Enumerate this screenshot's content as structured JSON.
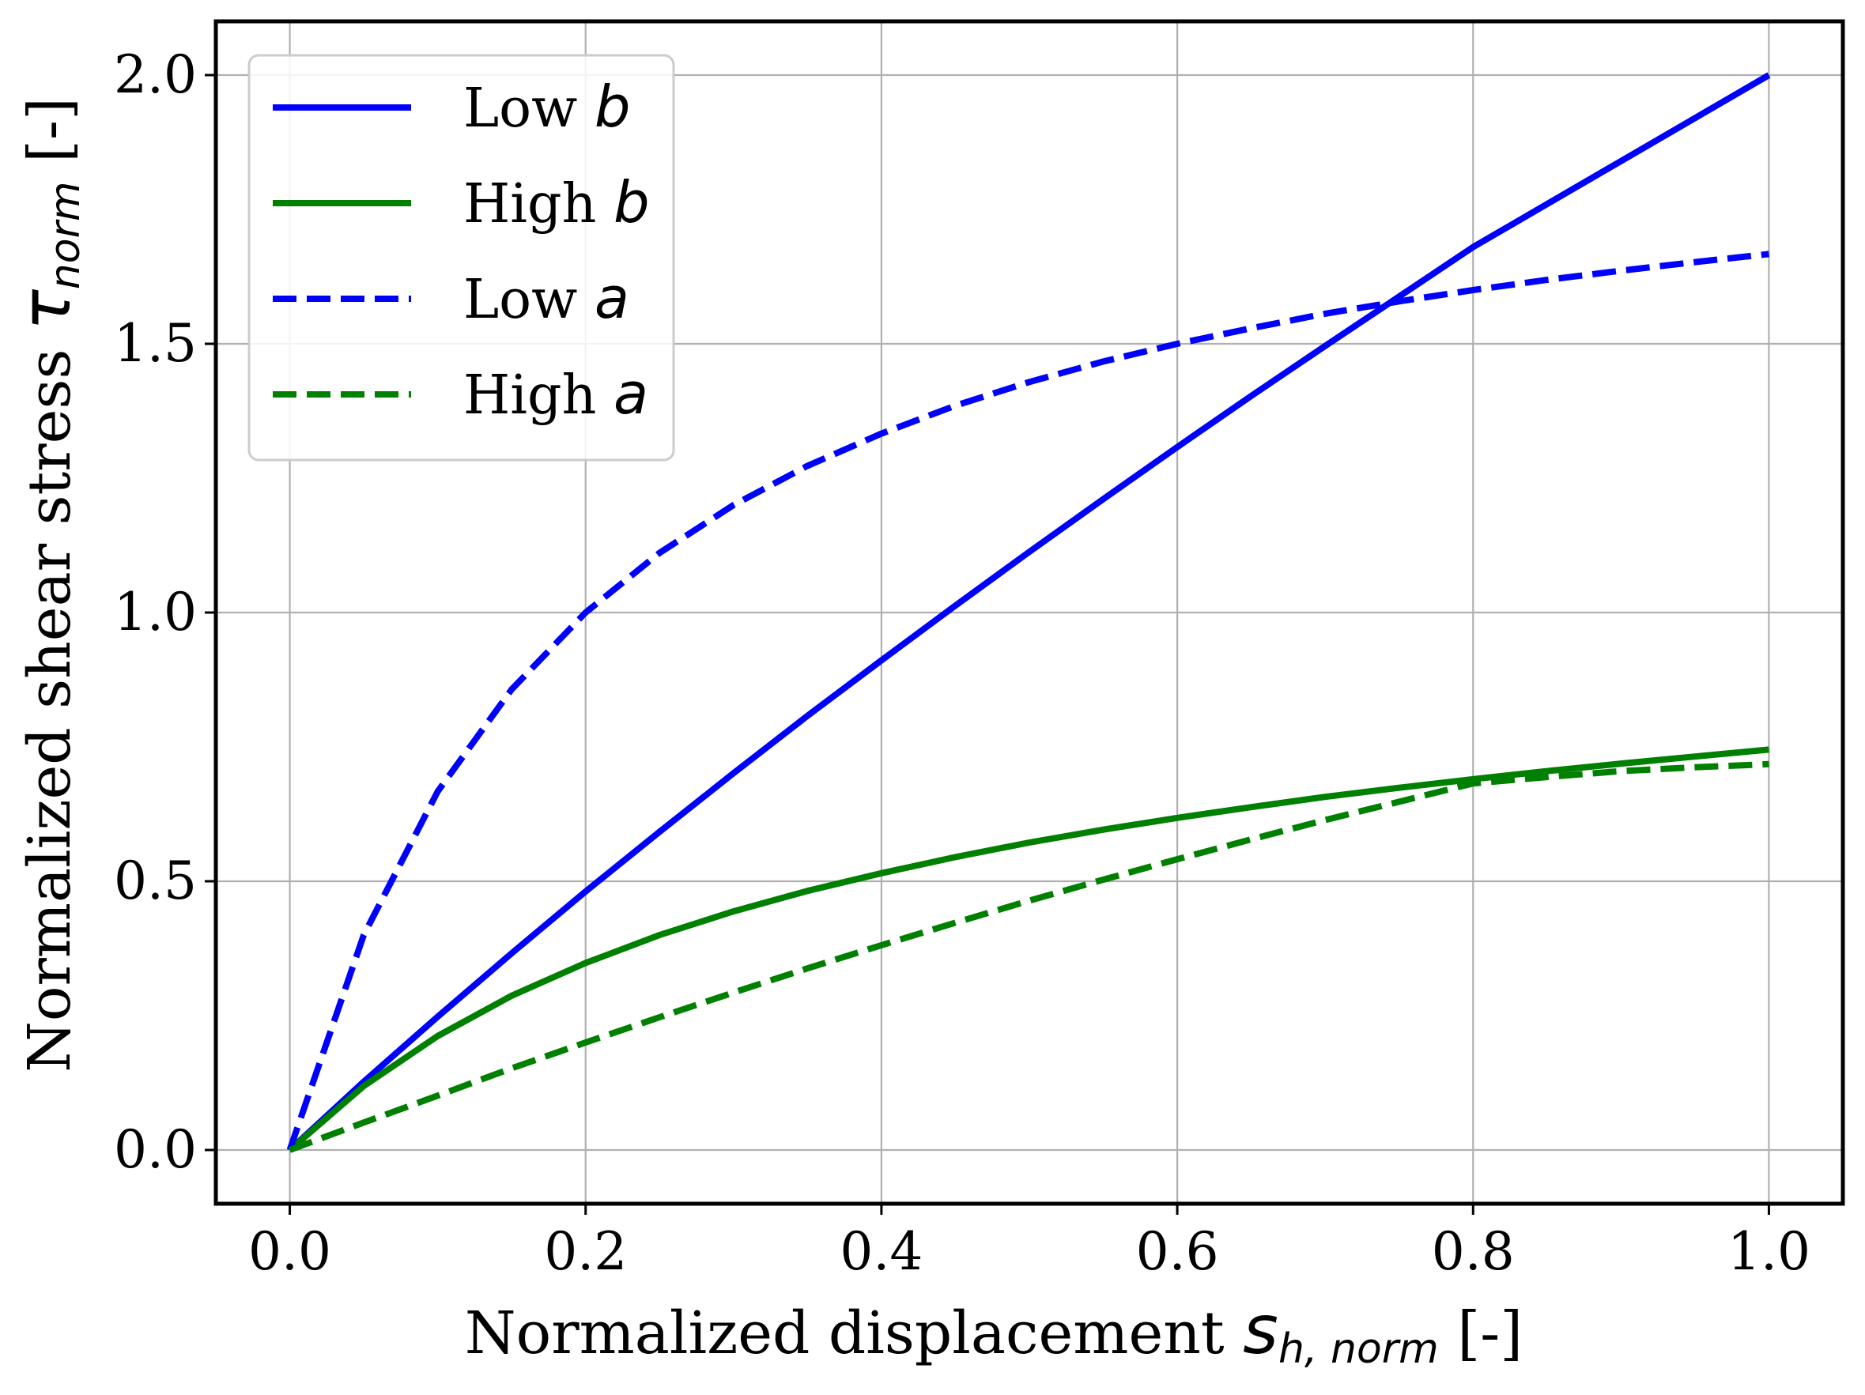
{
  "chart_data": {
    "type": "line",
    "xlabel": {
      "text": "Normalized displacement ",
      "symbol": "s",
      "subscript": "h, norm",
      "unit": " [-]"
    },
    "ylabel": {
      "text": "Normalized shear stress ",
      "symbol": "τ",
      "subscript": "norm",
      "unit": " [-]"
    },
    "xlim": [
      -0.05,
      1.05
    ],
    "ylim": [
      -0.1,
      2.1
    ],
    "x_ticks": [
      0.0,
      0.2,
      0.4,
      0.6,
      0.8,
      1.0
    ],
    "x_tick_labels": [
      "0.0",
      "0.2",
      "0.4",
      "0.6",
      "0.8",
      "1.0"
    ],
    "y_ticks": [
      0.0,
      0.5,
      1.0,
      1.5,
      2.0
    ],
    "y_tick_labels": [
      "0.0",
      "0.5",
      "1.0",
      "1.5",
      "2.0"
    ],
    "grid": true,
    "legend_position": "top-left",
    "x": [
      0.0,
      0.05,
      0.1,
      0.15,
      0.2,
      0.25,
      0.3,
      0.35,
      0.4,
      0.45,
      0.5,
      0.55,
      0.6,
      0.65,
      0.7,
      0.75,
      0.8,
      0.85,
      0.9,
      0.95,
      1.0
    ],
    "series": [
      {
        "name_text": "Low ",
        "name_symbol": "b",
        "color": "#0000ff",
        "style": "solid",
        "values": [
          0.0,
          0.127,
          0.248,
          0.366,
          0.481,
          0.592,
          0.701,
          0.808,
          0.911,
          1.013,
          1.113,
          1.211,
          1.308,
          1.403,
          1.496,
          1.588,
          1.68,
          1.76,
          1.84,
          1.92,
          2.0
        ]
      },
      {
        "name_text": "High ",
        "name_symbol": "b",
        "color": "#008000",
        "style": "solid",
        "values": [
          0.0,
          0.119,
          0.212,
          0.287,
          0.348,
          0.4,
          0.444,
          0.482,
          0.515,
          0.545,
          0.572,
          0.596,
          0.618,
          0.638,
          0.657,
          0.674,
          0.69,
          0.705,
          0.719,
          0.732,
          0.745
        ]
      },
      {
        "name_text": "Low ",
        "name_symbol": "a",
        "color": "#0000ff",
        "style": "dashed",
        "values": [
          0.0,
          0.4,
          0.667,
          0.857,
          1.0,
          1.111,
          1.2,
          1.273,
          1.333,
          1.385,
          1.429,
          1.467,
          1.5,
          1.529,
          1.556,
          1.579,
          1.6,
          1.619,
          1.636,
          1.652,
          1.667
        ]
      },
      {
        "name_text": "High ",
        "name_symbol": "a",
        "color": "#008000",
        "style": "dashed",
        "values": [
          0.0,
          0.051,
          0.101,
          0.152,
          0.2,
          0.247,
          0.293,
          0.338,
          0.381,
          0.423,
          0.464,
          0.503,
          0.541,
          0.578,
          0.614,
          0.648,
          0.682,
          0.694,
          0.705,
          0.712,
          0.718
        ]
      }
    ]
  }
}
